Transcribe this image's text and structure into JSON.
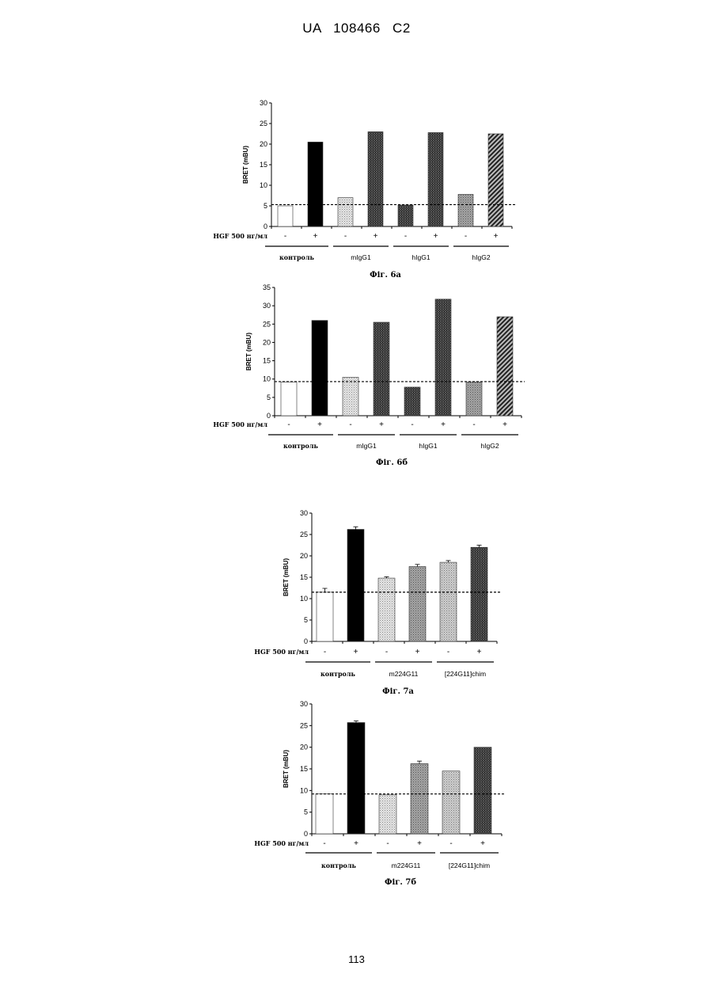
{
  "header": {
    "text": "UA   108466   C2"
  },
  "footer": {
    "page_number": "113"
  },
  "chart_data": [
    {
      "type": "bar",
      "caption": "Фіг. 6а",
      "ylabel": "BRET (mBU)",
      "ylim": [
        0,
        30
      ],
      "yticks": [
        0,
        5,
        10,
        15,
        20,
        25,
        30
      ],
      "condition_label": "HGF 500 нг/мл",
      "categories": [
        "-",
        "+",
        "-",
        "+",
        "-",
        "+",
        "-",
        "+"
      ],
      "values": [
        5,
        20.5,
        7,
        23,
        5.2,
        22.8,
        7.8,
        22.5
      ],
      "errors": [],
      "fills": [
        "white",
        "black",
        "light-dots",
        "dense-dark",
        "dense-dark",
        "dense-dark",
        "medium-gray",
        "diagonal-hatch"
      ],
      "baseline": 5.3,
      "groups": [
        {
          "label": "контроль",
          "bars": [
            0,
            1
          ]
        },
        {
          "label": "mIgG1",
          "bars": [
            2,
            3
          ]
        },
        {
          "label": "hIgG1",
          "bars": [
            4,
            5
          ]
        },
        {
          "label": "hIgG2",
          "bars": [
            6,
            7
          ]
        }
      ]
    },
    {
      "type": "bar",
      "caption": "Фіг. 6б",
      "ylabel": "BRET (mBU)",
      "ylim": [
        0,
        35
      ],
      "yticks": [
        0,
        5,
        10,
        15,
        20,
        25,
        30,
        35
      ],
      "condition_label": "HGF 500 нг/мл",
      "categories": [
        "-",
        "+",
        "-",
        "+",
        "-",
        "+",
        "-",
        "+"
      ],
      "values": [
        9.2,
        26,
        10.5,
        25.5,
        7.8,
        31.8,
        9.2,
        27
      ],
      "errors": [],
      "fills": [
        "white",
        "black",
        "light-dots",
        "dense-dark",
        "dense-dark",
        "dense-dark",
        "medium-gray",
        "diagonal-hatch"
      ],
      "baseline": 9.3,
      "groups": [
        {
          "label": "контроль",
          "bars": [
            0,
            1
          ]
        },
        {
          "label": "mIgG1",
          "bars": [
            2,
            3
          ]
        },
        {
          "label": "hIgG1",
          "bars": [
            4,
            5
          ]
        },
        {
          "label": "hIgG2",
          "bars": [
            6,
            7
          ]
        }
      ]
    },
    {
      "type": "bar",
      "caption": "Фіг. 7а",
      "ylabel": "BRET (mBU)",
      "ylim": [
        0,
        30
      ],
      "yticks": [
        0,
        5,
        10,
        15,
        20,
        25,
        30
      ],
      "condition_label": "HGF 500 нг/мл",
      "categories": [
        "-",
        "+",
        "-",
        "+",
        "-",
        "+"
      ],
      "values": [
        11.5,
        26.2,
        14.8,
        17.5,
        18.5,
        22
      ],
      "errors": [
        0.9,
        0.6,
        0.3,
        0.5,
        0.4,
        0.5
      ],
      "fills": [
        "white",
        "black",
        "light-dots",
        "medium-gray",
        "light-gray",
        "dense-dark"
      ],
      "baseline": 11.5,
      "groups": [
        {
          "label": "контроль",
          "bars": [
            0,
            1
          ]
        },
        {
          "label": "m224G11",
          "bars": [
            2,
            3
          ]
        },
        {
          "label": "[224G11]chim",
          "bars": [
            4,
            5
          ]
        }
      ]
    },
    {
      "type": "bar",
      "caption": "Фіг. 7б",
      "ylabel": "BRET (mBU)",
      "ylim": [
        0,
        30
      ],
      "yticks": [
        0,
        5,
        10,
        15,
        20,
        25,
        30
      ],
      "condition_label": "HGF 500 нг/мл",
      "categories": [
        "-",
        "+",
        "-",
        "+",
        "-",
        "+"
      ],
      "values": [
        9.2,
        25.7,
        9,
        16.2,
        14.5,
        20
      ],
      "errors": [
        0,
        0.4,
        0,
        0.6,
        0,
        0
      ],
      "fills": [
        "white",
        "black",
        "light-dots",
        "medium-gray",
        "light-gray",
        "dense-dark"
      ],
      "baseline": 9.2,
      "groups": [
        {
          "label": "контроль",
          "bars": [
            0,
            1
          ]
        },
        {
          "label": "m224G11",
          "bars": [
            2,
            3
          ]
        },
        {
          "label": "[224G11]chim",
          "bars": [
            4,
            5
          ]
        }
      ]
    }
  ]
}
